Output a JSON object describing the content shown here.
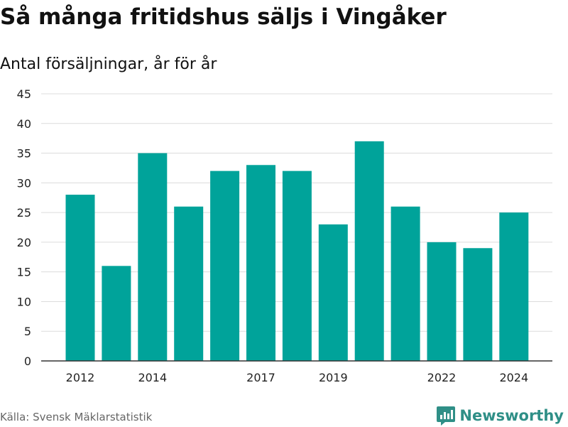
{
  "title": "Så många fritidshus säljs i Vingåker",
  "subtitle": "Antal försäljningar, år för år",
  "source": "Källa: Svensk Mäklarstatistik",
  "brand": {
    "name": "Newsworthy",
    "icon": "newsworthy-logo-icon",
    "color": "#2f8f87"
  },
  "colors": {
    "bar": "#00a39a",
    "grid": "#dcdcdc",
    "axis": "#333333"
  },
  "chart_data": {
    "type": "bar",
    "title": "Så många fritidshus säljs i Vingåker",
    "subtitle": "Antal försäljningar, år för år",
    "categories": [
      2012,
      2013,
      2014,
      2015,
      2016,
      2017,
      2018,
      2019,
      2020,
      2021,
      2022,
      2023,
      2024
    ],
    "values": [
      28,
      16,
      35,
      26,
      32,
      33,
      32,
      23,
      37,
      26,
      20,
      19,
      25
    ],
    "x_tick_labels": [
      "2012",
      "2014",
      "2017",
      "2019",
      "2022",
      "2024"
    ],
    "y_ticks": [
      0,
      5,
      10,
      15,
      20,
      25,
      30,
      35,
      40,
      45
    ],
    "ylim": [
      0,
      45
    ],
    "grid": true,
    "legend": false
  }
}
